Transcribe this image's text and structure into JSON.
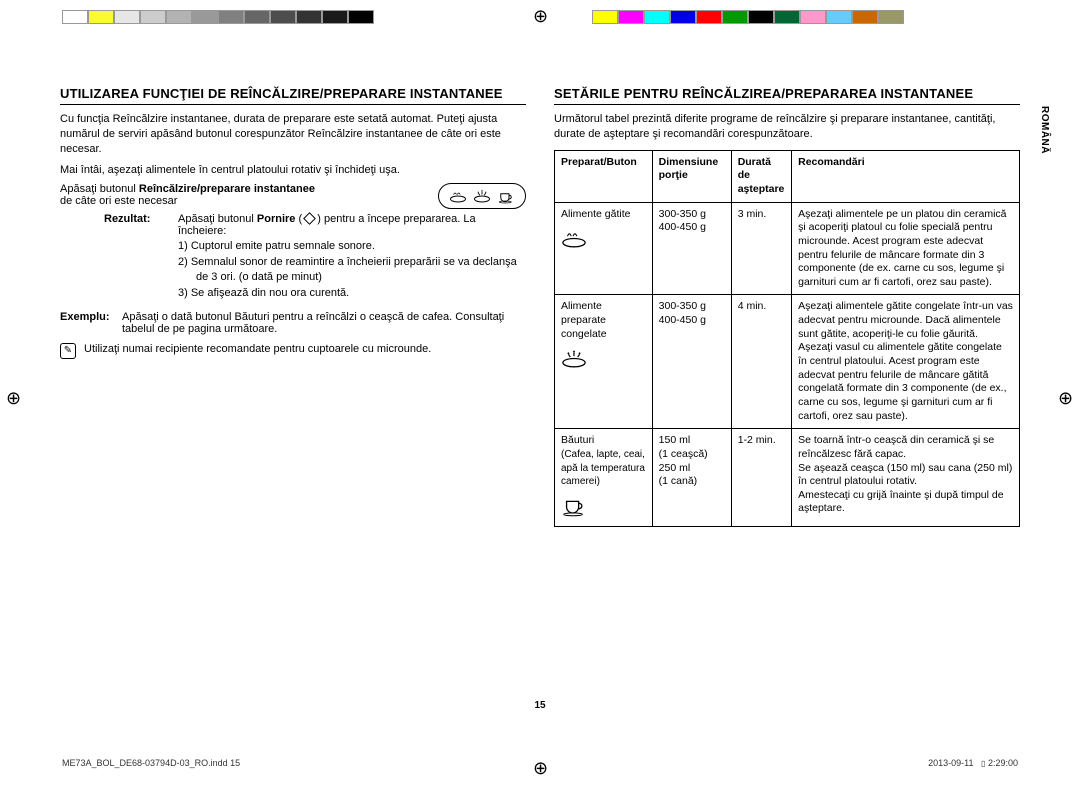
{
  "colorbars": {
    "left_colors": [
      "#ffffff",
      "#fafa33",
      "#e6e6e6",
      "#cccccc",
      "#b3b3b3",
      "#999999",
      "#808080",
      "#666666",
      "#4d4d4d",
      "#333333",
      "#1a1a1a",
      "#000000"
    ],
    "right_colors": [
      "#ffff00",
      "#ff00ff",
      "#00ffff",
      "#0000e6",
      "#ff0000",
      "#009900",
      "#000000",
      "#006633",
      "#ff99cc",
      "#66ccff",
      "#cc6600",
      "#999966"
    ]
  },
  "side_label": "ROMÂNĂ",
  "page_number": "15",
  "footer": {
    "left": "ME73A_BOL_DE68-03794D-03_RO.indd   15",
    "right_date": "2013-09-11",
    "right_time": "2:29:00"
  },
  "left": {
    "heading": "UTILIZAREA FUNCŢIEI DE REÎNCĂLZIRE/PREPARARE INSTANTANEE",
    "p1": "Cu funcţia Reîncălzire instantanee, durata de preparare este setată automat. Puteţi ajusta numărul de serviri apăsând butonul corespunzător Reîncălzire instantanee de câte ori este necesar.",
    "p2": "Mai întâi, aşezaţi alimentele în centrul platoului rotativ şi închideţi uşa.",
    "press_pre": "Apăsaţi butonul ",
    "press_bold": "Reîncălzire/preparare instantanee",
    "press_post": " de câte ori este necesar",
    "result_label": "Rezultat:",
    "result_pre": "Apăsaţi butonul ",
    "result_bold": "Pornire",
    "result_post_a": " ( ",
    "result_post_b": " ) pentru a începe prepararea. La încheiere:",
    "steps": [
      "1)  Cuptorul emite patru semnale sonore.",
      "2)  Semnalul sonor de reamintire a încheierii preparării se va declanşa de 3 ori. (o dată pe minut)",
      "3)  Se afişează din nou ora curentă."
    ],
    "example_label": "Exemplu:",
    "example_text": "Apăsaţi o dată butonul Băuturi pentru a reîncălzi o ceaşcă de cafea. Consultaţi tabelul de pe pagina următoare.",
    "note": "Utilizaţi numai recipiente recomandate pentru cuptoarele cu microunde."
  },
  "right": {
    "heading": "SETĂRILE PENTRU REÎNCĂLZIREA/PREPARAREA INSTANTANEE",
    "intro": "Următorul tabel prezintă diferite programe de reîncălzire şi preparare instantanee, cantităţi, durate de aşteptare şi recomandări corespunzătoare.",
    "headers": {
      "c1": "Preparat/Buton",
      "c2a": "Dimensiune",
      "c2b": "porţie",
      "c3a": "Durată de",
      "c3b": "aşteptare",
      "c4": "Recomandări"
    },
    "rows": [
      {
        "prep": "Alimente gătite",
        "dim": "300-350 g\n400-450 g",
        "dur": "3 min.",
        "rec": "Aşezaţi alimentele pe un platou din ceramică şi acoperiţi platoul cu folie specială pentru microunde. Acest program este adecvat pentru felurile de mâncare formate din 3 componente (de ex. carne cu sos, legume şi garnituri cum ar fi cartofi, orez sau paste).",
        "icon": "dish"
      },
      {
        "prep": "Alimente preparate congelate",
        "dim": "300-350 g\n400-450 g",
        "dur": "4 min.",
        "rec": "Aşezaţi alimentele gătite congelate într-un vas adecvat pentru microunde. Dacă alimentele sunt gătite, acoperiţi-le cu folie găurită. Aşezaţi vasul cu alimentele gătite congelate în centrul platoului. Acest program este adecvat pentru felurile de mâncare gătită congelată formate din 3 componente (de ex., carne cu sos, legume şi garnituri cum ar fi cartofi, orez sau paste).",
        "icon": "frozen"
      },
      {
        "prep_main": "Băuturi",
        "prep_sub": "(Cafea, lapte, ceai, apă la temperatura camerei)",
        "dim": "150 ml\n(1 ceaşcă)\n250 ml\n(1 cană)",
        "dur": "1-2 min.",
        "rec": "Se toarnă într-o ceaşcă din ceramică şi se reîncălzesc fără capac.\nSe aşează ceaşca (150 ml) sau cana (250 ml) în centrul platoului rotativ.\nAmestecaţi cu grijă înainte şi după timpul de aşteptare.",
        "icon": "cup"
      }
    ]
  }
}
